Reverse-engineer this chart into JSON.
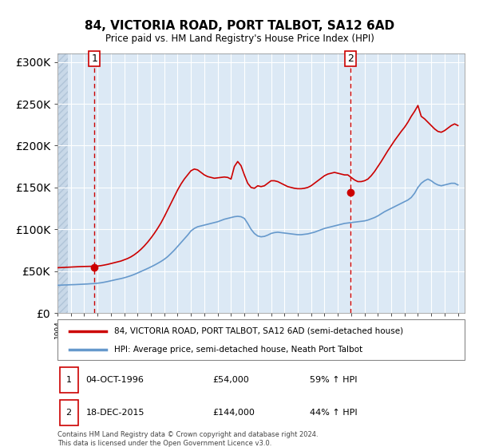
{
  "title": "84, VICTORIA ROAD, PORT TALBOT, SA12 6AD",
  "subtitle": "Price paid vs. HM Land Registry's House Price Index (HPI)",
  "legend_line1": "84, VICTORIA ROAD, PORT TALBOT, SA12 6AD (semi-detached house)",
  "legend_line2": "HPI: Average price, semi-detached house, Neath Port Talbot",
  "transaction1_label": "1",
  "transaction1_date": "04-OCT-1996",
  "transaction1_price": "£54,000",
  "transaction1_hpi": "59% ↑ HPI",
  "transaction2_label": "2",
  "transaction2_date": "18-DEC-2015",
  "transaction2_price": "£144,000",
  "transaction2_hpi": "44% ↑ HPI",
  "transaction1_year": 1996.76,
  "transaction1_value": 54000,
  "transaction2_year": 2015.96,
  "transaction2_value": 144000,
  "footnote": "Contains HM Land Registry data © Crown copyright and database right 2024.\nThis data is licensed under the Open Government Licence v3.0.",
  "red_color": "#cc0000",
  "blue_color": "#6699cc",
  "bg_plot": "#dce9f5",
  "bg_hatch": "#c8d8e8",
  "ylim": [
    0,
    310000
  ],
  "xlim_start": 1994.0,
  "xlim_end": 2024.5,
  "hpi_x": [
    1994,
    1994.25,
    1994.5,
    1994.75,
    1995,
    1995.25,
    1995.5,
    1995.75,
    1996,
    1996.25,
    1996.5,
    1996.75,
    1997,
    1997.25,
    1997.5,
    1997.75,
    1998,
    1998.25,
    1998.5,
    1998.75,
    1999,
    1999.25,
    1999.5,
    1999.75,
    2000,
    2000.25,
    2000.5,
    2000.75,
    2001,
    2001.25,
    2001.5,
    2001.75,
    2002,
    2002.25,
    2002.5,
    2002.75,
    2003,
    2003.25,
    2003.5,
    2003.75,
    2004,
    2004.25,
    2004.5,
    2004.75,
    2005,
    2005.25,
    2005.5,
    2005.75,
    2006,
    2006.25,
    2006.5,
    2006.75,
    2007,
    2007.25,
    2007.5,
    2007.75,
    2008,
    2008.25,
    2008.5,
    2008.75,
    2009,
    2009.25,
    2009.5,
    2009.75,
    2010,
    2010.25,
    2010.5,
    2010.75,
    2011,
    2011.25,
    2011.5,
    2011.75,
    2012,
    2012.25,
    2012.5,
    2012.75,
    2013,
    2013.25,
    2013.5,
    2013.75,
    2014,
    2014.25,
    2014.5,
    2014.75,
    2015,
    2015.25,
    2015.5,
    2015.75,
    2016,
    2016.25,
    2016.5,
    2016.75,
    2017,
    2017.25,
    2017.5,
    2017.75,
    2018,
    2018.25,
    2018.5,
    2018.75,
    2019,
    2019.25,
    2019.5,
    2019.75,
    2020,
    2020.25,
    2020.5,
    2020.75,
    2021,
    2021.25,
    2021.5,
    2021.75,
    2022,
    2022.25,
    2022.5,
    2022.75,
    2023,
    2023.25,
    2023.5,
    2023.75,
    2024
  ],
  "hpi_y": [
    33000,
    33200,
    33400,
    33500,
    33700,
    33800,
    34000,
    34200,
    34400,
    34600,
    34900,
    35100,
    35500,
    36000,
    36700,
    37500,
    38400,
    39300,
    40200,
    41000,
    42000,
    43200,
    44500,
    46000,
    47700,
    49500,
    51300,
    53100,
    55000,
    57000,
    59200,
    61500,
    64100,
    67200,
    71000,
    75000,
    79500,
    84000,
    88500,
    93000,
    98000,
    101000,
    103000,
    104000,
    105000,
    106000,
    107000,
    108000,
    109000,
    110500,
    112000,
    113000,
    114000,
    115000,
    115500,
    115000,
    113000,
    107000,
    100000,
    95000,
    92000,
    91000,
    91500,
    93000,
    95000,
    96000,
    96500,
    96000,
    95500,
    95000,
    94500,
    94000,
    93500,
    93500,
    94000,
    94500,
    95500,
    96500,
    98000,
    99500,
    101000,
    102000,
    103000,
    104000,
    105000,
    106000,
    107000,
    107500,
    108000,
    108500,
    109000,
    109500,
    110000,
    111000,
    112500,
    114000,
    116000,
    118500,
    121000,
    123000,
    125000,
    127000,
    129000,
    131000,
    133000,
    135000,
    138000,
    143000,
    150000,
    155000,
    158000,
    160000,
    158000,
    155000,
    153000,
    152000,
    153000,
    154000,
    155000,
    155000,
    153000
  ],
  "red_x": [
    1994,
    1994.25,
    1994.5,
    1994.75,
    1995,
    1995.25,
    1995.5,
    1995.75,
    1996,
    1996.25,
    1996.5,
    1996.75,
    1997,
    1997.25,
    1997.5,
    1997.75,
    1998,
    1998.25,
    1998.5,
    1998.75,
    1999,
    1999.25,
    1999.5,
    1999.75,
    2000,
    2000.25,
    2000.5,
    2000.75,
    2001,
    2001.25,
    2001.5,
    2001.75,
    2002,
    2002.25,
    2002.5,
    2002.75,
    2003,
    2003.25,
    2003.5,
    2003.75,
    2004,
    2004.25,
    2004.5,
    2004.75,
    2005,
    2005.25,
    2005.5,
    2005.75,
    2006,
    2006.25,
    2006.5,
    2006.75,
    2007,
    2007.25,
    2007.5,
    2007.75,
    2008,
    2008.25,
    2008.5,
    2008.75,
    2009,
    2009.25,
    2009.5,
    2009.75,
    2010,
    2010.25,
    2010.5,
    2010.75,
    2011,
    2011.25,
    2011.5,
    2011.75,
    2012,
    2012.25,
    2012.5,
    2012.75,
    2013,
    2013.25,
    2013.5,
    2013.75,
    2014,
    2014.25,
    2014.5,
    2014.75,
    2015,
    2015.25,
    2015.5,
    2015.75,
    2016,
    2016.25,
    2016.5,
    2016.75,
    2017,
    2017.25,
    2017.5,
    2017.75,
    2018,
    2018.25,
    2018.5,
    2018.75,
    2019,
    2019.25,
    2019.5,
    2019.75,
    2020,
    2020.25,
    2020.5,
    2020.75,
    2021,
    2021.25,
    2021.5,
    2021.75,
    2022,
    2022.25,
    2022.5,
    2022.75,
    2023,
    2023.25,
    2023.5,
    2023.75,
    2024
  ],
  "red_y": [
    54000,
    54200,
    54400,
    54600,
    54800,
    55000,
    55200,
    55400,
    55500,
    55600,
    55700,
    55800,
    56000,
    56500,
    57200,
    58000,
    59000,
    60000,
    61000,
    62000,
    63500,
    65000,
    67000,
    69500,
    72500,
    76000,
    80000,
    84500,
    89500,
    95000,
    101000,
    107500,
    115000,
    123000,
    131000,
    139000,
    147000,
    154000,
    160000,
    165000,
    170000,
    172000,
    171000,
    168000,
    165000,
    163000,
    162000,
    161000,
    161500,
    162000,
    162500,
    162000,
    160000,
    175000,
    181000,
    176000,
    165000,
    155000,
    150000,
    149000,
    152000,
    151000,
    152000,
    155000,
    158000,
    158000,
    157000,
    155000,
    153000,
    151000,
    150000,
    149000,
    148500,
    148500,
    149000,
    150000,
    152000,
    155000,
    158000,
    161000,
    164000,
    166000,
    167000,
    168000,
    167000,
    166000,
    165000,
    165000,
    162000,
    159000,
    157000,
    157000,
    158000,
    160000,
    164000,
    169000,
    175000,
    181000,
    187500,
    194000,
    200000,
    206000,
    211500,
    217000,
    222000,
    228000,
    235000,
    241000,
    248000,
    235000,
    232000,
    228000,
    224000,
    220000,
    217000,
    216000,
    218000,
    221000,
    224000,
    226000,
    224000
  ]
}
